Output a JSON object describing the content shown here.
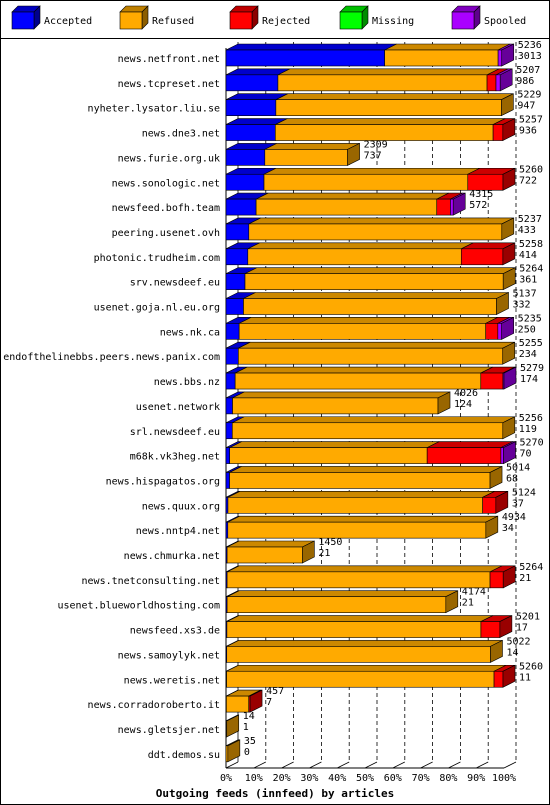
{
  "chart_data": {
    "type": "bar",
    "orientation": "horizontal",
    "stacked": true,
    "style": "3d",
    "title": "Outgoing feeds (innfeed) by articles",
    "xlabel": "",
    "ylabel": "",
    "xlim": [
      0,
      100
    ],
    "x_unit": "%",
    "x_ticks": [
      "0%",
      "10%",
      "20%",
      "30%",
      "40%",
      "50%",
      "60%",
      "70%",
      "80%",
      "90%",
      "100%"
    ],
    "grid": "vertical dashed",
    "legend_position": "top",
    "series": [
      {
        "name": "Accepted",
        "color": "#0000ff"
      },
      {
        "name": "Refused",
        "color": "#ffaa00"
      },
      {
        "name": "Rejected",
        "color": "#ff0000"
      },
      {
        "name": "Missing",
        "color": "#00ff00"
      },
      {
        "name": "Spooled",
        "color": "#aa00ff"
      }
    ],
    "max_total": 5279,
    "rows": [
      {
        "name": "news.netfront.net",
        "total": 5236,
        "accepted": 3013,
        "refused": 2154,
        "rejected": 0,
        "missing": 0,
        "spooled": 69
      },
      {
        "name": "news.tcpreset.net",
        "total": 5207,
        "accepted": 986,
        "refused": 3971,
        "rejected": 170,
        "missing": 0,
        "spooled": 80
      },
      {
        "name": "nyheter.lysator.liu.se",
        "total": 5229,
        "accepted": 947,
        "refused": 4282,
        "rejected": 0,
        "missing": 0,
        "spooled": 0
      },
      {
        "name": "news.dne3.net",
        "total": 5257,
        "accepted": 936,
        "refused": 4136,
        "rejected": 185,
        "missing": 0,
        "spooled": 0
      },
      {
        "name": "news.furie.org.uk",
        "total": 2309,
        "accepted": 737,
        "refused": 1572,
        "rejected": 0,
        "missing": 0,
        "spooled": 0
      },
      {
        "name": "news.sonologic.net",
        "total": 5260,
        "accepted": 722,
        "refused": 3869,
        "rejected": 669,
        "missing": 0,
        "spooled": 0
      },
      {
        "name": "newsfeed.bofh.team",
        "total": 4315,
        "accepted": 572,
        "refused": 3430,
        "rejected": 260,
        "missing": 0,
        "spooled": 53
      },
      {
        "name": "peering.usenet.ovh",
        "total": 5237,
        "accepted": 433,
        "refused": 4804,
        "rejected": 0,
        "missing": 0,
        "spooled": 0
      },
      {
        "name": "photonic.trudheim.com",
        "total": 5258,
        "accepted": 414,
        "refused": 4054,
        "rejected": 790,
        "missing": 0,
        "spooled": 0
      },
      {
        "name": "srv.newsdeef.eu",
        "total": 5264,
        "accepted": 361,
        "refused": 4903,
        "rejected": 0,
        "missing": 0,
        "spooled": 0
      },
      {
        "name": "usenet.goja.nl.eu.org",
        "total": 5137,
        "accepted": 332,
        "refused": 4805,
        "rejected": 0,
        "missing": 0,
        "spooled": 0
      },
      {
        "name": "news.nk.ca",
        "total": 5235,
        "accepted": 250,
        "refused": 4682,
        "rejected": 230,
        "missing": 0,
        "spooled": 73
      },
      {
        "name": "endofthelinebbs.peers.news.panix.com",
        "total": 5255,
        "accepted": 234,
        "refused": 5021,
        "rejected": 0,
        "missing": 0,
        "spooled": 0
      },
      {
        "name": "news.bbs.nz",
        "total": 5279,
        "accepted": 174,
        "refused": 4664,
        "rejected": 421,
        "missing": 0,
        "spooled": 20
      },
      {
        "name": "usenet.network",
        "total": 4026,
        "accepted": 124,
        "refused": 3902,
        "rejected": 0,
        "missing": 0,
        "spooled": 0
      },
      {
        "name": "srl.newsdeef.eu",
        "total": 5256,
        "accepted": 119,
        "refused": 5137,
        "rejected": 0,
        "missing": 0,
        "spooled": 0
      },
      {
        "name": "m68k.vk3heg.net",
        "total": 5270,
        "accepted": 70,
        "refused": 3750,
        "rejected": 1400,
        "missing": 0,
        "spooled": 50
      },
      {
        "name": "news.hispagatos.org",
        "total": 5014,
        "accepted": 68,
        "refused": 4946,
        "rejected": 0,
        "missing": 0,
        "spooled": 0
      },
      {
        "name": "news.quux.org",
        "total": 5124,
        "accepted": 37,
        "refused": 4837,
        "rejected": 250,
        "missing": 0,
        "spooled": 0
      },
      {
        "name": "news.nntp4.net",
        "total": 4934,
        "accepted": 34,
        "refused": 4900,
        "rejected": 0,
        "missing": 0,
        "spooled": 0
      },
      {
        "name": "news.chmurka.net",
        "total": 1450,
        "accepted": 21,
        "refused": 1429,
        "rejected": 0,
        "missing": 0,
        "spooled": 0
      },
      {
        "name": "news.tnetconsulting.net",
        "total": 5264,
        "accepted": 21,
        "refused": 4993,
        "rejected": 250,
        "missing": 0,
        "spooled": 0
      },
      {
        "name": "usenet.blueworldhosting.com",
        "total": 4174,
        "accepted": 21,
        "refused": 4153,
        "rejected": 0,
        "missing": 0,
        "spooled": 0
      },
      {
        "name": "newsfeed.xs3.de",
        "total": 5201,
        "accepted": 17,
        "refused": 4824,
        "rejected": 360,
        "missing": 0,
        "spooled": 0
      },
      {
        "name": "news.samoylyk.net",
        "total": 5022,
        "accepted": 14,
        "refused": 5008,
        "rejected": 0,
        "missing": 0,
        "spooled": 0
      },
      {
        "name": "news.weretis.net",
        "total": 5260,
        "accepted": 11,
        "refused": 5079,
        "rejected": 170,
        "missing": 0,
        "spooled": 0
      },
      {
        "name": "news.corradoroberto.it",
        "total": 457,
        "accepted": 7,
        "refused": 425,
        "rejected": 25,
        "missing": 0,
        "spooled": 0
      },
      {
        "name": "news.gletsjer.net",
        "total": 14,
        "accepted": 1,
        "refused": 13,
        "rejected": 0,
        "missing": 0,
        "spooled": 0
      },
      {
        "name": "ddt.demos.su",
        "total": 35,
        "accepted": 0,
        "refused": 35,
        "rejected": 0,
        "missing": 0,
        "spooled": 0
      }
    ]
  }
}
